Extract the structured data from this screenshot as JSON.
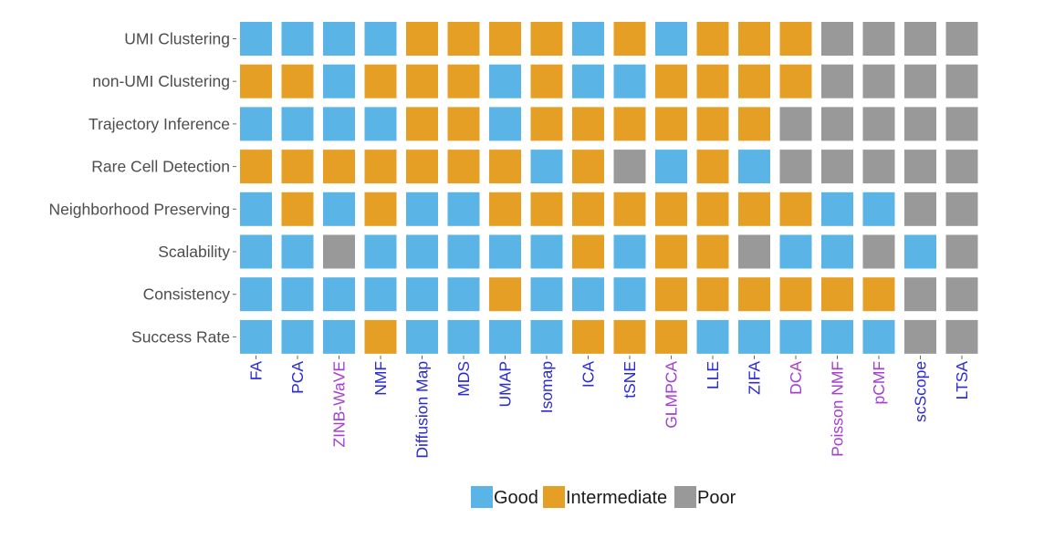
{
  "chart_data": {
    "type": "heatmap",
    "rows": [
      "UMI Clustering",
      "non-UMI Clustering",
      "Trajectory Inference",
      "Rare Cell Detection",
      "Neighborhood Preserving",
      "Scalability",
      "Consistency",
      "Success Rate"
    ],
    "columns": [
      {
        "name": "FA",
        "group": "blue"
      },
      {
        "name": "PCA",
        "group": "blue"
      },
      {
        "name": "ZINB-WaVE",
        "group": "purple"
      },
      {
        "name": "NMF",
        "group": "blue"
      },
      {
        "name": "Diffusion Map",
        "group": "blue"
      },
      {
        "name": "MDS",
        "group": "blue"
      },
      {
        "name": "UMAP",
        "group": "blue"
      },
      {
        "name": "Isomap",
        "group": "blue"
      },
      {
        "name": "ICA",
        "group": "blue"
      },
      {
        "name": "tSNE",
        "group": "blue"
      },
      {
        "name": "GLMPCA",
        "group": "purple"
      },
      {
        "name": "LLE",
        "group": "blue"
      },
      {
        "name": "ZIFA",
        "group": "blue"
      },
      {
        "name": "DCA",
        "group": "purple"
      },
      {
        "name": "Poisson NMF",
        "group": "purple"
      },
      {
        "name": "pCMF",
        "group": "purple"
      },
      {
        "name": "scScope",
        "group": "blue"
      },
      {
        "name": "LTSA",
        "group": "blue"
      }
    ],
    "values": [
      [
        "Good",
        "Good",
        "Good",
        "Good",
        "Intermediate",
        "Intermediate",
        "Intermediate",
        "Intermediate",
        "Good",
        "Intermediate",
        "Good",
        "Intermediate",
        "Intermediate",
        "Intermediate",
        "Poor",
        "Poor",
        "Poor",
        "Poor"
      ],
      [
        "Intermediate",
        "Intermediate",
        "Good",
        "Intermediate",
        "Intermediate",
        "Intermediate",
        "Good",
        "Intermediate",
        "Good",
        "Good",
        "Intermediate",
        "Intermediate",
        "Intermediate",
        "Intermediate",
        "Poor",
        "Poor",
        "Poor",
        "Poor"
      ],
      [
        "Good",
        "Good",
        "Good",
        "Good",
        "Intermediate",
        "Intermediate",
        "Good",
        "Intermediate",
        "Intermediate",
        "Intermediate",
        "Intermediate",
        "Intermediate",
        "Intermediate",
        "Poor",
        "Poor",
        "Poor",
        "Poor",
        "Poor"
      ],
      [
        "Intermediate",
        "Intermediate",
        "Intermediate",
        "Intermediate",
        "Intermediate",
        "Intermediate",
        "Intermediate",
        "Good",
        "Intermediate",
        "Poor",
        "Good",
        "Intermediate",
        "Good",
        "Poor",
        "Poor",
        "Poor",
        "Poor",
        "Poor"
      ],
      [
        "Good",
        "Intermediate",
        "Good",
        "Intermediate",
        "Good",
        "Good",
        "Intermediate",
        "Intermediate",
        "Intermediate",
        "Intermediate",
        "Intermediate",
        "Intermediate",
        "Intermediate",
        "Intermediate",
        "Good",
        "Good",
        "Poor",
        "Poor"
      ],
      [
        "Good",
        "Good",
        "Poor",
        "Good",
        "Good",
        "Good",
        "Good",
        "Good",
        "Intermediate",
        "Good",
        "Intermediate",
        "Intermediate",
        "Poor",
        "Good",
        "Good",
        "Poor",
        "Good",
        "Poor"
      ],
      [
        "Good",
        "Good",
        "Good",
        "Good",
        "Good",
        "Good",
        "Intermediate",
        "Good",
        "Good",
        "Good",
        "Intermediate",
        "Intermediate",
        "Intermediate",
        "Intermediate",
        "Intermediate",
        "Intermediate",
        "Poor",
        "Poor"
      ],
      [
        "Good",
        "Good",
        "Good",
        "Intermediate",
        "Good",
        "Good",
        "Good",
        "Good",
        "Intermediate",
        "Intermediate",
        "Intermediate",
        "Good",
        "Good",
        "Good",
        "Good",
        "Good",
        "Poor",
        "Poor"
      ]
    ],
    "legend": {
      "position": "bottom",
      "items": [
        {
          "label": "Good",
          "color": "#5ab4e5"
        },
        {
          "label": "Intermediate",
          "color": "#e69f25"
        },
        {
          "label": "Poor",
          "color": "#999999"
        }
      ]
    },
    "label_colors": {
      "blue": "#2b2bd6",
      "purple": "#a33fd1"
    },
    "grid": false
  }
}
